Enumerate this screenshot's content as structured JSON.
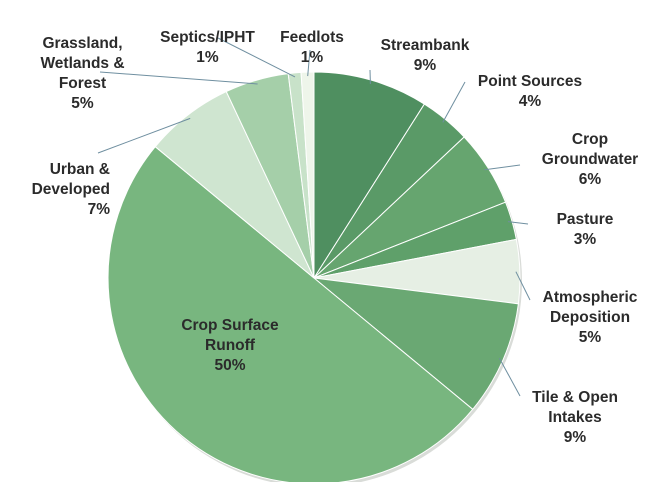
{
  "chart_data": {
    "type": "pie",
    "title": "",
    "legend": "none",
    "start": "top, clockwise",
    "slices": [
      {
        "label": "Streambank",
        "value": 9,
        "pct": "9%",
        "color": "#4f8f60"
      },
      {
        "label": "Point Sources",
        "value": 4,
        "pct": "4%",
        "color": "#5a9a67"
      },
      {
        "label": "Crop\nGroundwater",
        "value": 6,
        "pct": "6%",
        "color": "#66a56f"
      },
      {
        "label": "Pasture",
        "value": 3,
        "pct": "3%",
        "color": "#5fa06a"
      },
      {
        "label": "Atmospheric\nDeposition",
        "value": 5,
        "pct": "5%",
        "color": "#e6efe4"
      },
      {
        "label": "Tile & Open\nIntakes",
        "value": 9,
        "pct": "9%",
        "color": "#6aa873"
      },
      {
        "label": "Crop Surface\nRunoff",
        "value": 50,
        "pct": "50%",
        "color": "#78b67f"
      },
      {
        "label": "Urban &\nDeveloped",
        "value": 7,
        "pct": "7%",
        "color": "#cfe5d0"
      },
      {
        "label": "Grassland,\nWetlands &\nForest",
        "value": 5,
        "pct": "5%",
        "color": "#a5cfa9"
      },
      {
        "label": "Septics/IPHT",
        "value": 1,
        "pct": "1%",
        "color": "#c8e2c9"
      },
      {
        "label": "Feedlots",
        "value": 1,
        "pct": "1%",
        "color": "#eef5ea"
      }
    ]
  }
}
